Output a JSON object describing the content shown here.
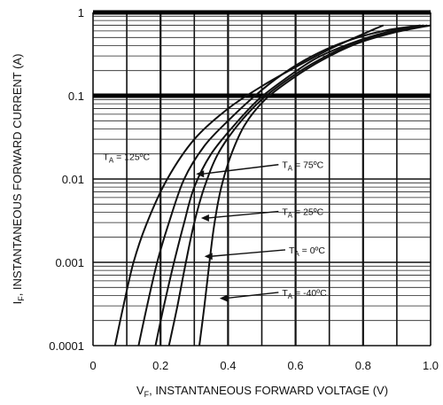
{
  "chart_data": {
    "type": "line",
    "title": "",
    "xlabel": {
      "main": "V",
      "sub": "F",
      "rest": ", INSTANTANEOUS FORWARD VOLTAGE (V)"
    },
    "ylabel": {
      "main": "I",
      "sub": "F",
      "rest": ", INSTANTANEOUS FORWARD CURRENT (A)"
    },
    "xlim": [
      0,
      1.0
    ],
    "ylim": [
      0.0001,
      1
    ],
    "yscale": "log",
    "grid": true,
    "x_ticks": [
      {
        "value": 0,
        "label": "0"
      },
      {
        "value": 0.2,
        "label": "0.2"
      },
      {
        "value": 0.4,
        "label": "0.4"
      },
      {
        "value": 0.6,
        "label": "0.6"
      },
      {
        "value": 0.8,
        "label": "0.8"
      },
      {
        "value": 1.0,
        "label": "1.0"
      }
    ],
    "y_ticks": [
      {
        "value": 1,
        "label": "1"
      },
      {
        "value": 0.1,
        "label": "0.1"
      },
      {
        "value": 0.01,
        "label": "0.01"
      },
      {
        "value": 0.001,
        "label": "0.001"
      },
      {
        "value": 0.0001,
        "label": "0.0001"
      }
    ],
    "series": [
      {
        "name": "125°C",
        "label_main": "T",
        "label_sub": "A",
        "label_rest": " = 125ºC",
        "x": [
          0.065,
          0.09,
          0.12,
          0.16,
          0.22,
          0.3,
          0.4,
          0.5,
          0.6,
          0.7,
          0.8,
          0.86
        ],
        "y": [
          0.0001,
          0.0003,
          0.001,
          0.003,
          0.01,
          0.03,
          0.07,
          0.13,
          0.22,
          0.36,
          0.55,
          0.7
        ]
      },
      {
        "name": "75°C",
        "label_main": "T",
        "label_sub": "A",
        "label_rest": " = 75ºC",
        "x": [
          0.135,
          0.16,
          0.19,
          0.225,
          0.27,
          0.33,
          0.4,
          0.48,
          0.56,
          0.65,
          0.75,
          0.86,
          0.97
        ],
        "y": [
          0.0001,
          0.0003,
          0.001,
          0.003,
          0.01,
          0.025,
          0.05,
          0.1,
          0.18,
          0.3,
          0.45,
          0.6,
          0.7
        ]
      },
      {
        "name": "25°C",
        "label_main": "T",
        "label_sub": "A",
        "label_rest": " = 25ºC",
        "x": [
          0.185,
          0.21,
          0.24,
          0.27,
          0.3,
          0.35,
          0.42,
          0.49,
          0.57,
          0.66,
          0.76,
          0.87,
          0.98
        ],
        "y": [
          0.0001,
          0.0003,
          0.001,
          0.003,
          0.008,
          0.02,
          0.045,
          0.09,
          0.16,
          0.28,
          0.42,
          0.58,
          0.7
        ]
      },
      {
        "name": "0°C",
        "label_main": "T",
        "label_sub": "A",
        "label_rest": " = 0ºC",
        "x": [
          0.225,
          0.25,
          0.275,
          0.3,
          0.33,
          0.37,
          0.43,
          0.5,
          0.58,
          0.67,
          0.77,
          0.88,
          0.99
        ],
        "y": [
          0.0001,
          0.0003,
          0.001,
          0.003,
          0.008,
          0.02,
          0.045,
          0.09,
          0.16,
          0.27,
          0.42,
          0.57,
          0.7
        ]
      },
      {
        "name": "-40°C",
        "label_main": "T",
        "label_sub": "A",
        "label_rest": " = -40ºC",
        "x": [
          0.315,
          0.33,
          0.345,
          0.36,
          0.38,
          0.41,
          0.45,
          0.51,
          0.59,
          0.68,
          0.78,
          0.89,
          1.0
        ],
        "y": [
          0.0001,
          0.0003,
          0.001,
          0.003,
          0.008,
          0.02,
          0.045,
          0.09,
          0.16,
          0.27,
          0.42,
          0.57,
          0.7
        ]
      }
    ],
    "annotations": [
      {
        "series": "125°C",
        "text_x": 0.03,
        "text_y": 0.017,
        "arrow": false
      },
      {
        "series": "75°C",
        "text_x": 0.56,
        "text_y": 0.0135,
        "arrow": true,
        "arrow_to_x": 0.305,
        "arrow_to_y": 0.0115
      },
      {
        "series": "25°C",
        "text_x": 0.56,
        "text_y": 0.0037,
        "arrow": true,
        "arrow_to_x": 0.32,
        "arrow_to_y": 0.0034
      },
      {
        "series": "0°C",
        "text_x": 0.58,
        "text_y": 0.00128,
        "arrow": true,
        "arrow_to_x": 0.33,
        "arrow_to_y": 0.00118
      },
      {
        "series": "-40°C",
        "text_x": 0.56,
        "text_y": 0.000395,
        "arrow": true,
        "arrow_to_x": 0.375,
        "arrow_to_y": 0.00037
      }
    ]
  }
}
